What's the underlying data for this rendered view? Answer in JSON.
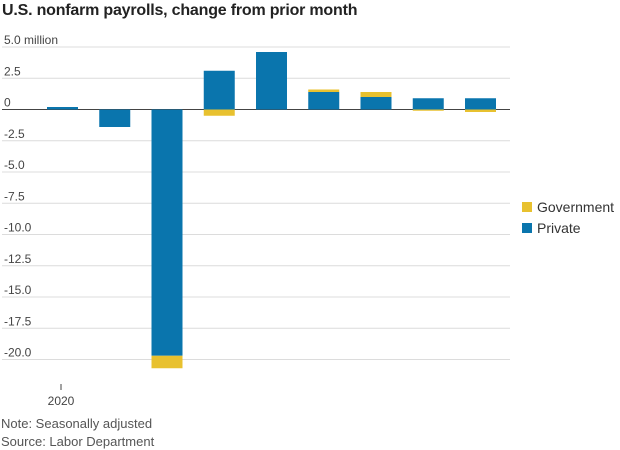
{
  "chart_data": {
    "type": "bar",
    "stacked": true,
    "title": "U.S. nonfarm payrolls, change from prior month",
    "y_unit_label": "million",
    "ylim": [
      -21,
      5
    ],
    "yticks": [
      5.0,
      2.5,
      0,
      -2.5,
      -5.0,
      -7.5,
      -10.0,
      -12.5,
      -15.0,
      -17.5,
      -20.0
    ],
    "ytick_labels": [
      "5.0 million",
      "2.5",
      "0",
      "-2.5",
      "-5.0",
      "-7.5",
      "-10.0",
      "-12.5",
      "-15.0",
      "-17.5",
      "-20.0"
    ],
    "x_tick_label": "2020",
    "x_tick_index": 0,
    "grid": true,
    "legend_position": "right",
    "series": [
      {
        "name": "Private",
        "color": "#0a75ad",
        "values": [
          0.2,
          -1.4,
          -19.7,
          3.1,
          4.6,
          1.4,
          1.0,
          0.9,
          0.9
        ]
      },
      {
        "name": "Government",
        "color": "#e8c12f",
        "values": [
          0.0,
          0.0,
          -1.0,
          -0.5,
          0.0,
          0.2,
          0.4,
          -0.1,
          -0.2
        ]
      }
    ],
    "legend": [
      {
        "name": "Government",
        "color": "#e8c12f"
      },
      {
        "name": "Private",
        "color": "#0a75ad"
      }
    ]
  },
  "footer": {
    "note": "Note: Seasonally adjusted",
    "source": "Source: Labor Department"
  }
}
